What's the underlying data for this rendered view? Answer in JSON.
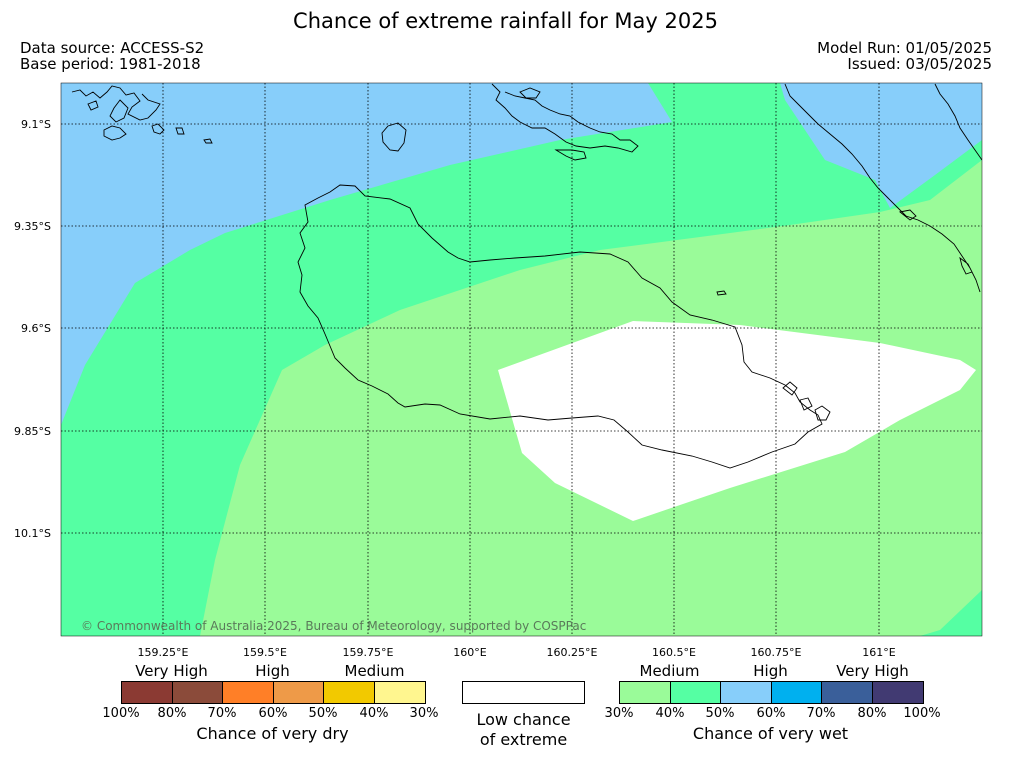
{
  "title": "Chance of extreme rainfall for May 2025",
  "meta": {
    "data_source": "Data source: ACCESS-S2",
    "base_period": "Base period: 1981-2018",
    "model_run": "Model Run: 01/05/2025",
    "issued": "Issued: 03/05/2025"
  },
  "map": {
    "lat_labels": [
      "9.1°S",
      "9.35°S",
      "9.6°S",
      "9.85°S",
      "10.1°S"
    ],
    "lon_labels": [
      "159.25°E",
      "159.5°E",
      "159.75°E",
      "160°E",
      "160.25°E",
      "160.5°E",
      "160.75°E",
      "161°E"
    ],
    "copyright": "© Commonwealth of Australia 2025, Bureau of Meteorology, supported by COSPPac",
    "zone_colors": {
      "wet_50_60": "#87CEFA",
      "wet_40_50": "#55FFA3",
      "wet_30_40": "#9AFB99",
      "low": "#FFFFFF"
    }
  },
  "legend": {
    "dry": {
      "headings": [
        "Very High",
        "High",
        "Medium"
      ],
      "colors": [
        "#8B3A33",
        "#8B4B3A",
        "#FF7F27",
        "#EE9A48",
        "#F2C900",
        "#FFF68F"
      ],
      "ticks": [
        "100%",
        "80%",
        "70%",
        "60%",
        "50%",
        "40%",
        "30%"
      ],
      "caption": "Chance of very dry"
    },
    "low": {
      "caption_line1": "Low chance",
      "caption_line2": "of extreme"
    },
    "wet": {
      "headings": [
        "Medium",
        "High",
        "Very High"
      ],
      "colors": [
        "#9AFB99",
        "#55FFA3",
        "#87CEFA",
        "#00B0EF",
        "#3A5F9A",
        "#413A72"
      ],
      "ticks": [
        "30%",
        "40%",
        "50%",
        "60%",
        "70%",
        "80%",
        "100%"
      ],
      "caption": "Chance of very wet"
    }
  }
}
